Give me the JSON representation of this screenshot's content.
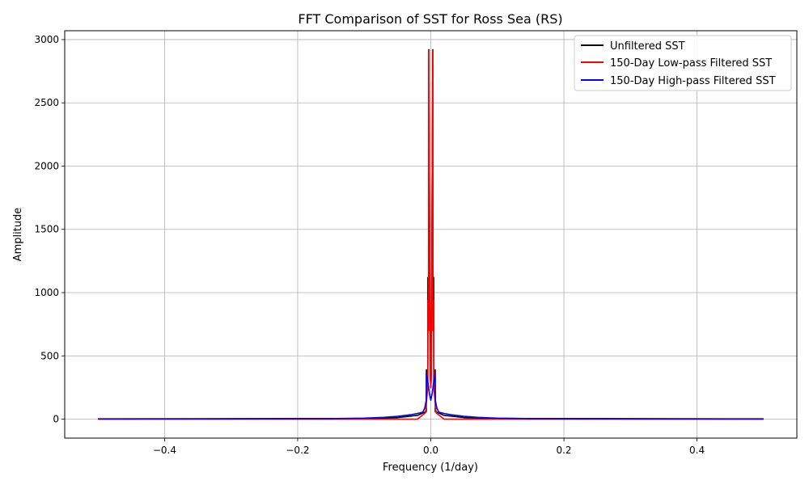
{
  "chart_data": {
    "type": "line",
    "title": "FFT Comparison of SST for Ross Sea (RS)",
    "xlabel": "Frequency (1/day)",
    "ylabel": "Amplitude",
    "xlim": [
      -0.55,
      0.55
    ],
    "ylim": [
      -150,
      3070
    ],
    "grid": true,
    "legend_position": "top-right",
    "xticks": [
      -0.4,
      -0.2,
      0.0,
      0.2,
      0.4
    ],
    "xtick_labels": [
      "−0.4",
      "−0.2",
      "0.0",
      "0.2",
      "0.4"
    ],
    "yticks": [
      0,
      500,
      1000,
      1500,
      2000,
      2500,
      3000
    ],
    "ytick_labels": [
      "0",
      "500",
      "1000",
      "1500",
      "2000",
      "2500",
      "3000"
    ],
    "series": [
      {
        "name": "Unfiltered SST",
        "color": "#000000",
        "x": [
          -0.5,
          -0.1,
          -0.05,
          -0.02,
          -0.0068,
          -0.0066,
          -0.0045,
          -0.0043,
          -0.0032,
          -0.003,
          -0.0008,
          0,
          0.0008,
          0.003,
          0.0032,
          0.0043,
          0.0045,
          0.0066,
          0.0068,
          0.02,
          0.05,
          0.1,
          0.5
        ],
        "values": [
          2,
          5,
          12,
          30,
          60,
          390,
          300,
          1120,
          900,
          2920,
          350,
          250,
          350,
          2920,
          900,
          1120,
          300,
          390,
          60,
          30,
          12,
          5,
          2
        ]
      },
      {
        "name": "150-Day Low-pass Filtered SST",
        "color": "#ff0000",
        "x": [
          -0.5,
          -0.02,
          -0.008,
          -0.0045,
          -0.0043,
          -0.0032,
          -0.003,
          -0.0008,
          0,
          0.0008,
          0.003,
          0.0032,
          0.0043,
          0.0045,
          0.008,
          0.02,
          0.5
        ],
        "values": [
          0,
          0,
          50,
          250,
          940,
          700,
          2910,
          330,
          250,
          330,
          2910,
          700,
          940,
          250,
          50,
          0,
          0
        ]
      },
      {
        "name": "150-Day High-pass Filtered SST",
        "color": "#0000ff",
        "x": [
          -0.5,
          -0.3,
          -0.15,
          -0.1,
          -0.07,
          -0.05,
          -0.03,
          -0.02,
          -0.012,
          -0.009,
          -0.0068,
          -0.0066,
          -0.004,
          -0.002,
          0,
          0.002,
          0.004,
          0.0066,
          0.0068,
          0.009,
          0.012,
          0.02,
          0.03,
          0.05,
          0.07,
          0.1,
          0.15,
          0.3,
          0.5
        ],
        "values": [
          1,
          2,
          4,
          8,
          14,
          22,
          35,
          45,
          55,
          90,
          150,
          360,
          280,
          200,
          150,
          200,
          280,
          360,
          150,
          90,
          55,
          45,
          35,
          22,
          14,
          8,
          4,
          2,
          1
        ]
      }
    ]
  }
}
